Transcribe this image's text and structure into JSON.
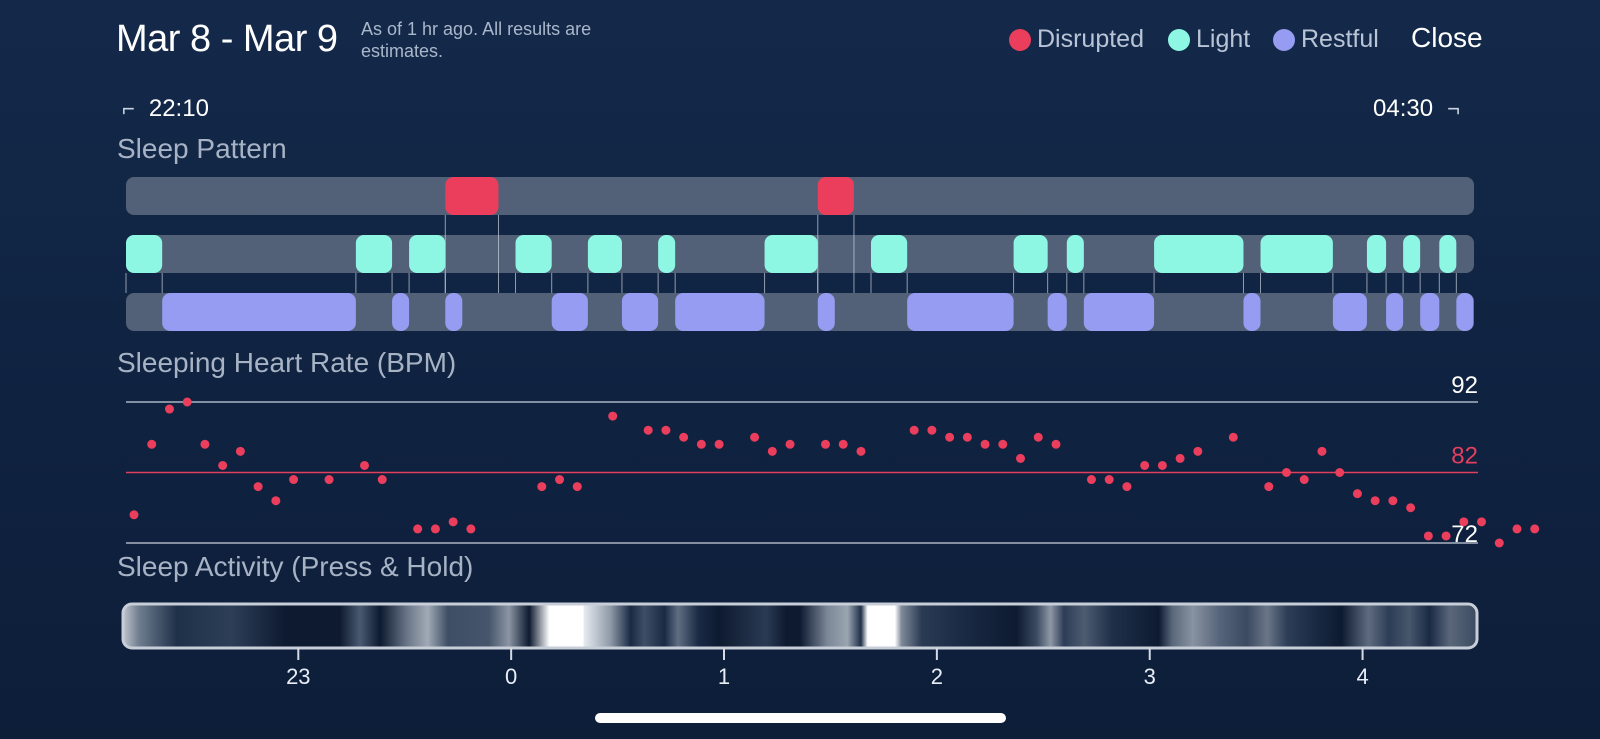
{
  "header": {
    "date_range": "Mar 8 - Mar 9",
    "as_of_note": "As of 1 hr ago. All results are estimates.",
    "close_label": "Close"
  },
  "legend": [
    {
      "label": "Disrupted",
      "color": "#ea3e5c"
    },
    {
      "label": "Light",
      "color": "#8ef7e4"
    },
    {
      "label": "Restful",
      "color": "#959cf1"
    }
  ],
  "time_range": {
    "start": "22:10",
    "end": "04:30"
  },
  "icons": {
    "start_bracket": "corner-bracket-left-icon",
    "end_bracket": "corner-bracket-right-icon"
  },
  "sections": {
    "sleep_pattern": "Sleep Pattern",
    "heart_rate": "Sleeping Heart Rate (BPM)",
    "activity": "Sleep Activity (Press & Hold)"
  },
  "sleep_pattern": {
    "x_unit": "hours since 22:10",
    "disrupted": [
      [
        1.5,
        1.75
      ],
      [
        3.25,
        3.42
      ]
    ],
    "light": [
      [
        0,
        0.17
      ],
      [
        1.08,
        1.25
      ],
      [
        1.33,
        1.5
      ],
      [
        1.83,
        2.0
      ],
      [
        2.17,
        2.33
      ],
      [
        2.5,
        2.58
      ],
      [
        3.0,
        3.25
      ],
      [
        3.5,
        3.67
      ],
      [
        4.17,
        4.33
      ],
      [
        4.42,
        4.5
      ],
      [
        4.83,
        5.25
      ],
      [
        5.33,
        5.67
      ],
      [
        5.83,
        5.92
      ],
      [
        6.0,
        6.08
      ],
      [
        6.17,
        6.25
      ]
    ],
    "restful": [
      [
        0.17,
        1.08
      ],
      [
        1.25,
        1.33
      ],
      [
        1.5,
        1.58
      ],
      [
        2.0,
        2.17
      ],
      [
        2.33,
        2.5
      ],
      [
        2.58,
        3.0
      ],
      [
        3.25,
        3.33
      ],
      [
        3.67,
        4.17
      ],
      [
        4.33,
        4.42
      ],
      [
        4.5,
        4.83
      ],
      [
        5.25,
        5.33
      ],
      [
        5.67,
        5.83
      ],
      [
        5.92,
        6.0
      ],
      [
        6.08,
        6.17
      ],
      [
        6.25,
        6.33
      ]
    ]
  },
  "heart_rate": {
    "y_labels": {
      "max": "92",
      "avg": "82",
      "min": "72"
    },
    "y_max": 92,
    "y_avg": 82,
    "y_min": 72,
    "avg_color": "#e23e5e",
    "x_start": 0,
    "x_step": 0.0833,
    "values": [
      76,
      86,
      91,
      92,
      86,
      83,
      85,
      80,
      78,
      81,
      null,
      81,
      null,
      83,
      81,
      null,
      74,
      74,
      75,
      74,
      null,
      null,
      null,
      80,
      81,
      80,
      null,
      90,
      null,
      88,
      88,
      87,
      86,
      86,
      null,
      87,
      85,
      86,
      null,
      86,
      86,
      85,
      null,
      null,
      88,
      88,
      87,
      87,
      86,
      86,
      84,
      87,
      86,
      null,
      81,
      81,
      80,
      83,
      83,
      84,
      85,
      null,
      87,
      null,
      80,
      82,
      81,
      85,
      82,
      79,
      78,
      78,
      77,
      73,
      73,
      75,
      75,
      72,
      74,
      74
    ]
  },
  "activity": {
    "x_ticks": [
      "23",
      "0",
      "1",
      "2",
      "3",
      "4"
    ],
    "x_tick_values": [
      0.833,
      1.833,
      2.833,
      3.833,
      4.833,
      5.833
    ]
  }
}
